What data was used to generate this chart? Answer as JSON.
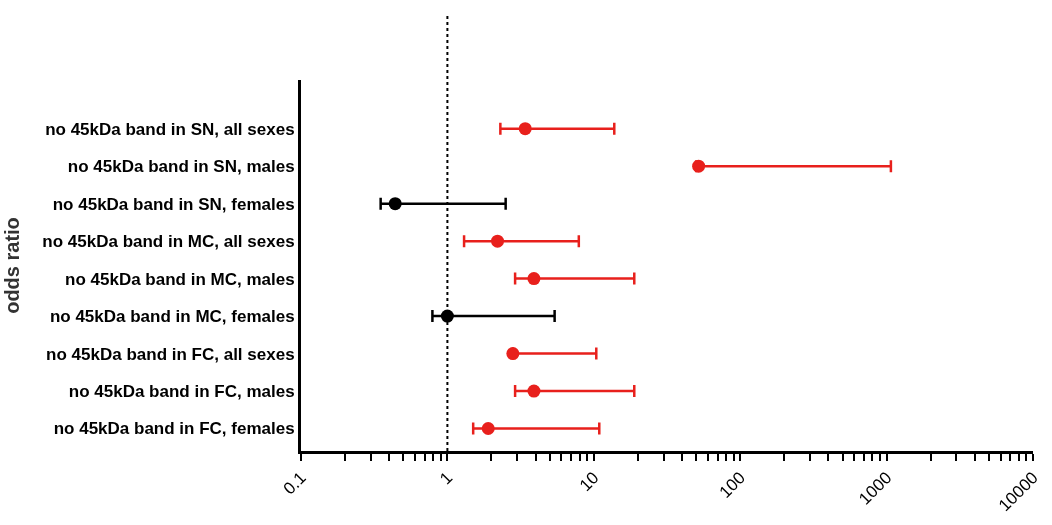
{
  "chart_data": {
    "type": "scatter",
    "orientation": "horizontal",
    "ylabel": "odds ratio",
    "categories": [
      "no 45kDa band in SN, all sexes",
      "no 45kDa band in SN, males",
      "no 45kDa band in SN, females",
      "no 45kDa band in MC, all sexes",
      "no 45kDa band in MC, males",
      "no 45kDa band in MC, females",
      "no 45kDa band in FC, all sexes",
      "no 45kDa band in FC, males",
      "no 45kDa band in FC, females"
    ],
    "values": [
      3.4,
      52,
      0.44,
      2.2,
      3.9,
      1.0,
      2.8,
      3.9,
      1.9
    ],
    "errors": [
      [
        2.3,
        13.8
      ],
      [
        50,
        1070
      ],
      [
        0.35,
        2.5
      ],
      [
        1.3,
        7.9
      ],
      [
        2.9,
        18.9
      ],
      [
        0.79,
        5.4
      ],
      [
        2.8,
        10.4
      ],
      [
        2.9,
        18.9
      ],
      [
        1.5,
        10.9
      ]
    ],
    "colors": [
      "#e8201c",
      "#e8201c",
      "#000000",
      "#e8201c",
      "#e8201c",
      "#000000",
      "#e8201c",
      "#e8201c",
      "#e8201c"
    ],
    "log": "x",
    "xlim": [
      0.1,
      10000
    ],
    "xticks": [
      0.1,
      {
        "value": 0.2,
        "label": null
      },
      {
        "value": 0.3,
        "label": null
      },
      {
        "value": 0.4,
        "label": null
      },
      {
        "value": 0.5,
        "label": null
      },
      {
        "value": 0.6,
        "label": null
      },
      {
        "value": 0.7,
        "label": null
      },
      {
        "value": 0.8,
        "label": null
      },
      {
        "value": 0.9,
        "label": null
      },
      1,
      {
        "value": 2,
        "label": null
      },
      {
        "value": 3,
        "label": null
      },
      {
        "value": 4,
        "label": null
      },
      {
        "value": 5,
        "label": null
      },
      {
        "value": 6,
        "label": null
      },
      {
        "value": 7,
        "label": null
      },
      {
        "value": 8,
        "label": null
      },
      {
        "value": 9,
        "label": null
      },
      10,
      {
        "value": 20,
        "label": null
      },
      {
        "value": 30,
        "label": null
      },
      {
        "value": 40,
        "label": null
      },
      {
        "value": 50,
        "label": null
      },
      {
        "value": 60,
        "label": null
      },
      {
        "value": 70,
        "label": null
      },
      {
        "value": 80,
        "label": null
      },
      {
        "value": 90,
        "label": null
      },
      100,
      {
        "value": 200,
        "label": null
      },
      {
        "value": 300,
        "label": null
      },
      {
        "value": 400,
        "label": null
      },
      {
        "value": 500,
        "label": null
      },
      {
        "value": 600,
        "label": null
      },
      {
        "value": 700,
        "label": null
      },
      {
        "value": 800,
        "label": null
      },
      {
        "value": 900,
        "label": null
      },
      1000,
      {
        "value": 2000,
        "label": null
      },
      {
        "value": 3000,
        "label": null
      },
      {
        "value": 4000,
        "label": null
      },
      {
        "value": 5000,
        "label": null
      },
      {
        "value": 6000,
        "label": null
      },
      {
        "value": 7000,
        "label": null
      },
      {
        "value": 8000,
        "label": null
      },
      {
        "value": 9000,
        "label": null
      },
      10000
    ],
    "ref_lines": [
      {
        "axis": "x",
        "value": 1,
        "line_style": "dotted",
        "color": "#000000"
      }
    ],
    "marker": "circle"
  }
}
